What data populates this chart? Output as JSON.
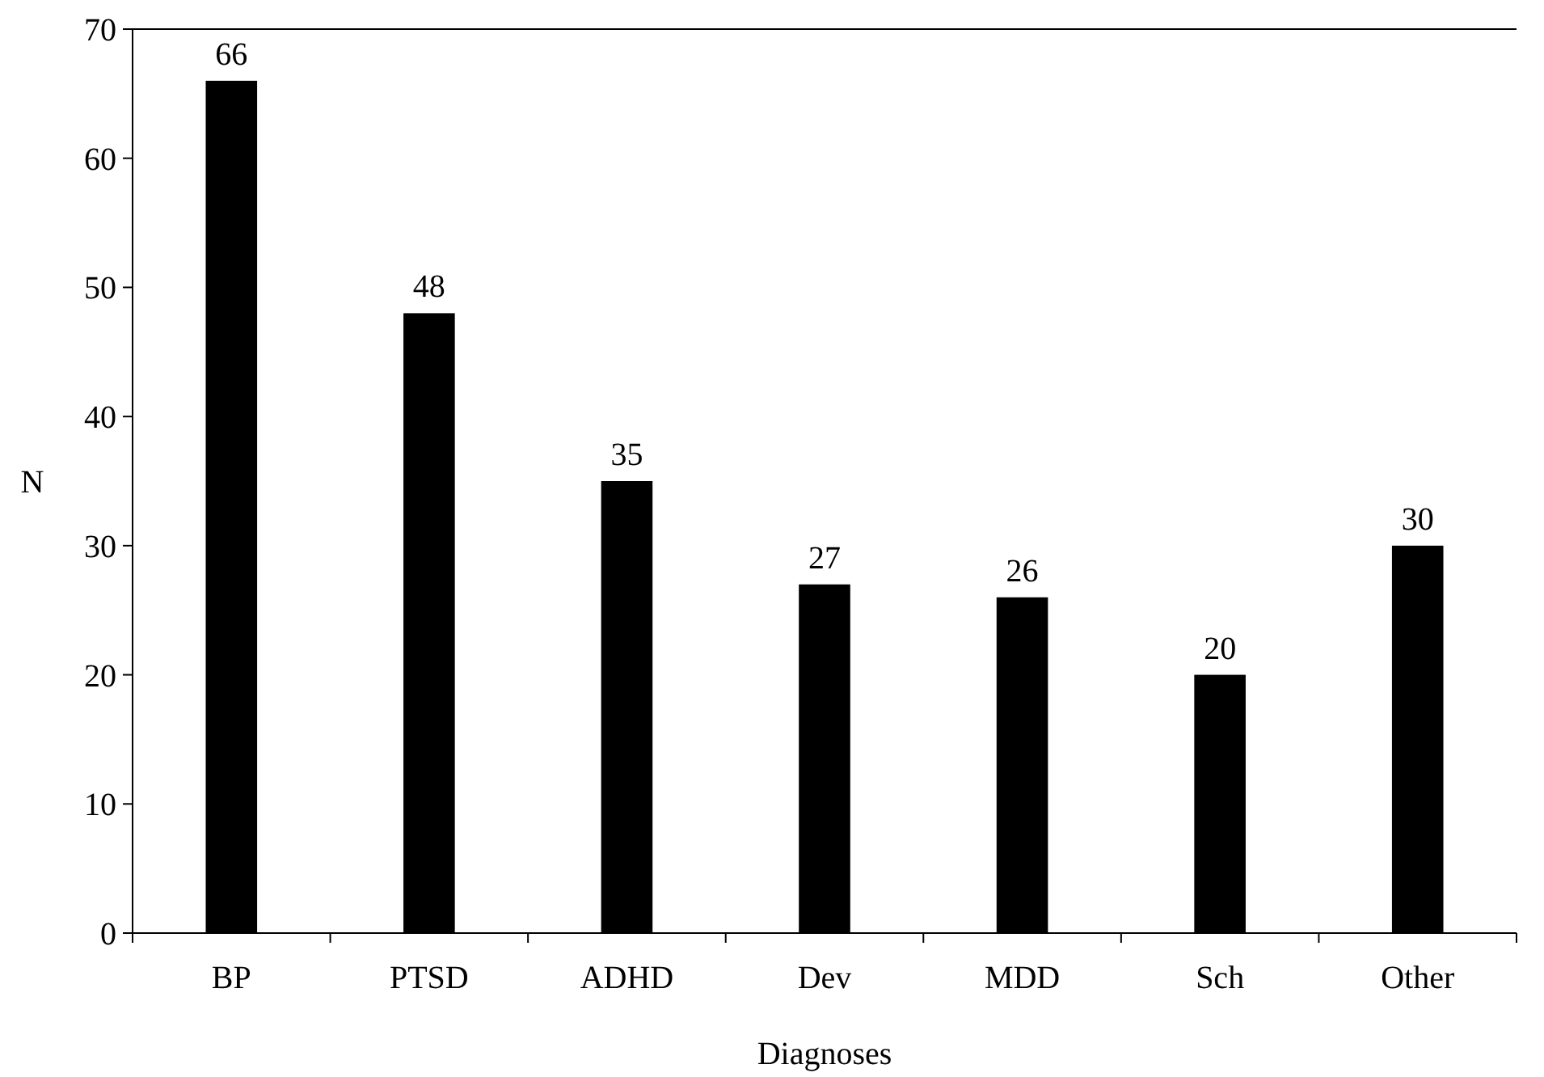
{
  "chart_data": {
    "type": "bar",
    "xlabel": "Diagnoses",
    "ylabel": "N",
    "categories": [
      "BP",
      "PTSD",
      "ADHD",
      "Dev",
      "MDD",
      "Sch",
      "Other"
    ],
    "values": [
      66,
      48,
      35,
      27,
      26,
      20,
      30
    ],
    "color": "#000000",
    "ylim": [
      0,
      70
    ],
    "yticks": [
      0,
      10,
      20,
      30,
      40,
      50,
      60,
      70
    ],
    "grid": false,
    "data_labels": true
  }
}
